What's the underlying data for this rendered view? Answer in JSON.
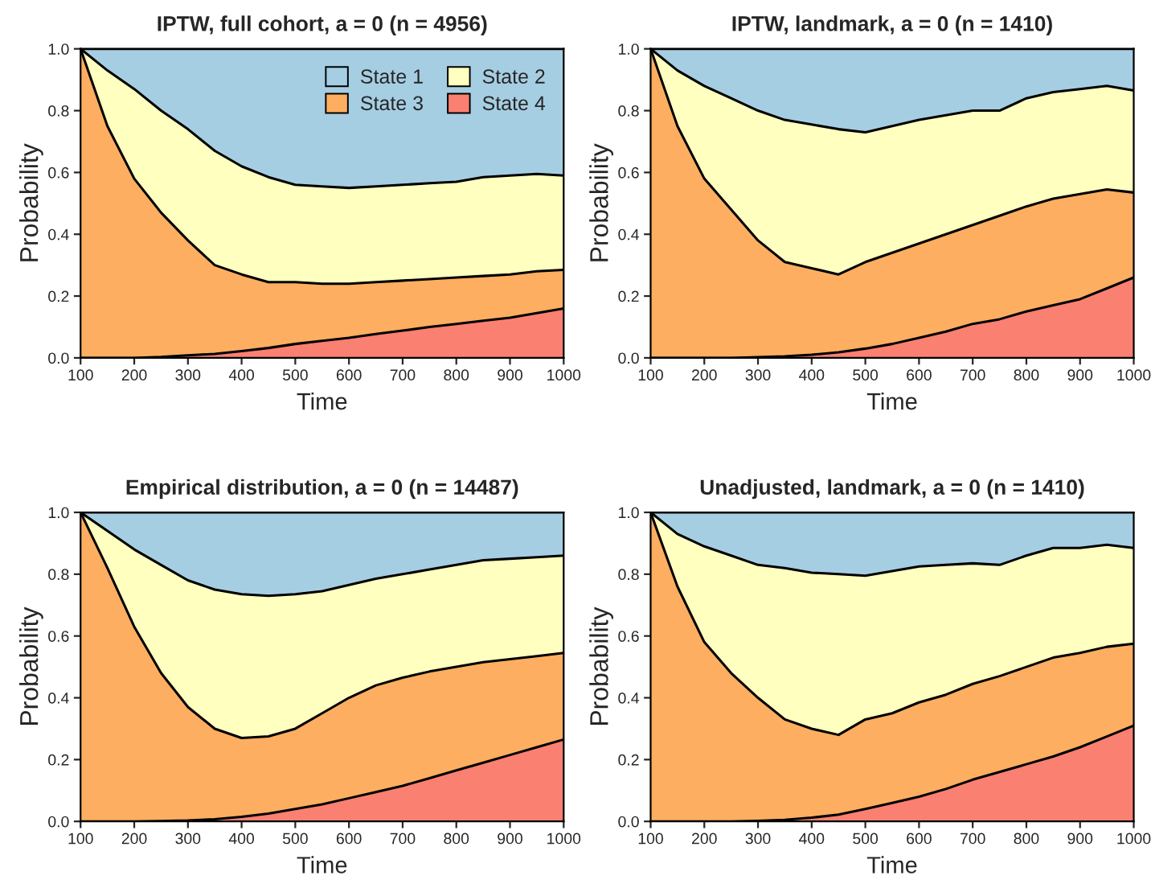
{
  "chart_data": [
    {
      "type": "area",
      "stacked": true,
      "title": "IPTW, full cohort, a = 0 (n = 4956)",
      "xlabel": "Time",
      "ylabel": "Probability",
      "legend": "top right",
      "x": [
        100,
        150,
        200,
        250,
        300,
        350,
        400,
        450,
        500,
        550,
        600,
        650,
        700,
        750,
        800,
        850,
        900,
        950,
        1000
      ],
      "xlim": [
        100,
        1000
      ],
      "ylim": [
        0,
        1
      ],
      "xticks": [
        100,
        200,
        300,
        400,
        500,
        600,
        700,
        800,
        900,
        1000
      ],
      "yticks": [
        {
          "value": 0,
          "label": "0.0"
        },
        {
          "value": 0.2,
          "label": "0.2"
        },
        {
          "value": 0.4,
          "label": "0.4"
        },
        {
          "value": 0.6,
          "label": "0.6"
        },
        {
          "value": 0.8,
          "label": "0.8"
        },
        {
          "value": 1,
          "label": "1.0"
        }
      ],
      "series": [
        {
          "name": "State 4",
          "color": "#fa8072",
          "values": [
            0,
            0,
            0,
            0.003,
            0.008,
            0.013,
            0.022,
            0.032,
            0.045,
            0.055,
            0.065,
            0.077,
            0.088,
            0.1,
            0.11,
            0.12,
            0.13,
            0.145,
            0.16
          ]
        },
        {
          "name": "State 3",
          "color": "#fdae61",
          "values": [
            1.0,
            0.75,
            0.58,
            0.467,
            0.372,
            0.287,
            0.248,
            0.213,
            0.2,
            0.185,
            0.175,
            0.168,
            0.162,
            0.155,
            0.15,
            0.145,
            0.14,
            0.135,
            0.125
          ]
        },
        {
          "name": "State 2",
          "color": "#ffffbf",
          "values": [
            0,
            0.18,
            0.29,
            0.33,
            0.36,
            0.37,
            0.35,
            0.34,
            0.315,
            0.315,
            0.31,
            0.31,
            0.31,
            0.31,
            0.31,
            0.32,
            0.32,
            0.315,
            0.305
          ]
        },
        {
          "name": "State 1",
          "color": "#a6cee3",
          "values": [
            0,
            0.07,
            0.13,
            0.2,
            0.26,
            0.33,
            0.38,
            0.415,
            0.44,
            0.445,
            0.45,
            0.445,
            0.44,
            0.435,
            0.43,
            0.415,
            0.41,
            0.405,
            0.41
          ]
        }
      ]
    },
    {
      "type": "area",
      "stacked": true,
      "title": "IPTW, landmark, a = 0 (n = 1410)",
      "xlabel": "Time",
      "ylabel": "Probability",
      "x": [
        100,
        150,
        200,
        250,
        300,
        350,
        400,
        450,
        500,
        550,
        600,
        650,
        700,
        750,
        800,
        850,
        900,
        950,
        1000
      ],
      "xlim": [
        100,
        1000
      ],
      "ylim": [
        0,
        1
      ],
      "xticks": [
        100,
        200,
        300,
        400,
        500,
        600,
        700,
        800,
        900,
        1000
      ],
      "yticks": [
        {
          "value": 0,
          "label": "0.0"
        },
        {
          "value": 0.2,
          "label": "0.2"
        },
        {
          "value": 0.4,
          "label": "0.4"
        },
        {
          "value": 0.6,
          "label": "0.6"
        },
        {
          "value": 0.8,
          "label": "0.8"
        },
        {
          "value": 1,
          "label": "1.0"
        }
      ],
      "series": [
        {
          "color": "#fa8072",
          "values": [
            0,
            0,
            0,
            0,
            0.002,
            0.005,
            0.01,
            0.018,
            0.03,
            0.045,
            0.065,
            0.085,
            0.11,
            0.125,
            0.15,
            0.17,
            0.19,
            0.225,
            0.26
          ]
        },
        {
          "color": "#fdae61",
          "values": [
            1.0,
            0.75,
            0.58,
            0.48,
            0.378,
            0.305,
            0.28,
            0.252,
            0.28,
            0.295,
            0.305,
            0.315,
            0.32,
            0.335,
            0.34,
            0.345,
            0.34,
            0.32,
            0.275
          ]
        },
        {
          "color": "#ffffbf",
          "values": [
            0,
            0.18,
            0.3,
            0.36,
            0.42,
            0.46,
            0.465,
            0.47,
            0.42,
            0.41,
            0.4,
            0.385,
            0.37,
            0.34,
            0.35,
            0.345,
            0.34,
            0.335,
            0.33
          ]
        },
        {
          "color": "#a6cee3",
          "values": [
            0,
            0.07,
            0.12,
            0.16,
            0.2,
            0.23,
            0.245,
            0.26,
            0.27,
            0.25,
            0.23,
            0.215,
            0.2,
            0.2,
            0.16,
            0.14,
            0.13,
            0.12,
            0.135
          ]
        }
      ]
    },
    {
      "type": "area",
      "stacked": true,
      "title": "Empirical distribution, a = 0 (n = 14487)",
      "xlabel": "Time",
      "ylabel": "Probability",
      "x": [
        100,
        150,
        200,
        250,
        300,
        350,
        400,
        450,
        500,
        550,
        600,
        650,
        700,
        750,
        800,
        850,
        900,
        950,
        1000
      ],
      "xlim": [
        100,
        1000
      ],
      "ylim": [
        0,
        1
      ],
      "xticks": [
        100,
        200,
        300,
        400,
        500,
        600,
        700,
        800,
        900,
        1000
      ],
      "yticks": [
        {
          "value": 0,
          "label": "0.0"
        },
        {
          "value": 0.2,
          "label": "0.2"
        },
        {
          "value": 0.4,
          "label": "0.4"
        },
        {
          "value": 0.6,
          "label": "0.6"
        },
        {
          "value": 0.8,
          "label": "0.8"
        },
        {
          "value": 1,
          "label": "1.0"
        }
      ],
      "series": [
        {
          "color": "#fa8072",
          "values": [
            0,
            0,
            0,
            0.001,
            0.003,
            0.007,
            0.015,
            0.025,
            0.04,
            0.055,
            0.075,
            0.095,
            0.115,
            0.14,
            0.165,
            0.19,
            0.215,
            0.24,
            0.265
          ]
        },
        {
          "color": "#fdae61",
          "values": [
            1.0,
            0.82,
            0.63,
            0.479,
            0.367,
            0.293,
            0.255,
            0.25,
            0.26,
            0.295,
            0.325,
            0.345,
            0.35,
            0.345,
            0.335,
            0.325,
            0.31,
            0.295,
            0.28
          ]
        },
        {
          "color": "#ffffbf",
          "values": [
            0,
            0.12,
            0.25,
            0.35,
            0.41,
            0.45,
            0.465,
            0.455,
            0.435,
            0.395,
            0.365,
            0.345,
            0.335,
            0.33,
            0.33,
            0.33,
            0.325,
            0.32,
            0.315
          ]
        },
        {
          "color": "#a6cee3",
          "values": [
            0,
            0.06,
            0.12,
            0.17,
            0.22,
            0.25,
            0.265,
            0.27,
            0.265,
            0.255,
            0.235,
            0.215,
            0.2,
            0.185,
            0.17,
            0.155,
            0.15,
            0.145,
            0.14
          ]
        }
      ]
    },
    {
      "type": "area",
      "stacked": true,
      "title": "Unadjusted, landmark, a = 0 (n = 1410)",
      "xlabel": "Time",
      "ylabel": "Probability",
      "x": [
        100,
        150,
        200,
        250,
        300,
        350,
        400,
        450,
        500,
        550,
        600,
        650,
        700,
        750,
        800,
        850,
        900,
        950,
        1000
      ],
      "xlim": [
        100,
        1000
      ],
      "ylim": [
        0,
        1
      ],
      "xticks": [
        100,
        200,
        300,
        400,
        500,
        600,
        700,
        800,
        900,
        1000
      ],
      "yticks": [
        {
          "value": 0,
          "label": "0.0"
        },
        {
          "value": 0.2,
          "label": "0.2"
        },
        {
          "value": 0.4,
          "label": "0.4"
        },
        {
          "value": 0.6,
          "label": "0.6"
        },
        {
          "value": 0.8,
          "label": "0.8"
        },
        {
          "value": 1,
          "label": "1.0"
        }
      ],
      "series": [
        {
          "color": "#fa8072",
          "values": [
            0,
            0,
            0,
            0,
            0.002,
            0.005,
            0.012,
            0.022,
            0.04,
            0.06,
            0.08,
            0.105,
            0.135,
            0.16,
            0.185,
            0.21,
            0.24,
            0.275,
            0.31
          ]
        },
        {
          "color": "#fdae61",
          "values": [
            1.0,
            0.76,
            0.58,
            0.48,
            0.398,
            0.325,
            0.288,
            0.258,
            0.29,
            0.29,
            0.305,
            0.305,
            0.31,
            0.31,
            0.315,
            0.32,
            0.305,
            0.29,
            0.265
          ]
        },
        {
          "color": "#ffffbf",
          "values": [
            0,
            0.17,
            0.31,
            0.38,
            0.43,
            0.49,
            0.505,
            0.52,
            0.465,
            0.46,
            0.44,
            0.42,
            0.39,
            0.36,
            0.36,
            0.355,
            0.34,
            0.33,
            0.31
          ]
        },
        {
          "color": "#a6cee3",
          "values": [
            0,
            0.07,
            0.11,
            0.14,
            0.17,
            0.18,
            0.195,
            0.2,
            0.205,
            0.19,
            0.175,
            0.17,
            0.165,
            0.17,
            0.14,
            0.115,
            0.115,
            0.105,
            0.115
          ]
        }
      ]
    }
  ]
}
